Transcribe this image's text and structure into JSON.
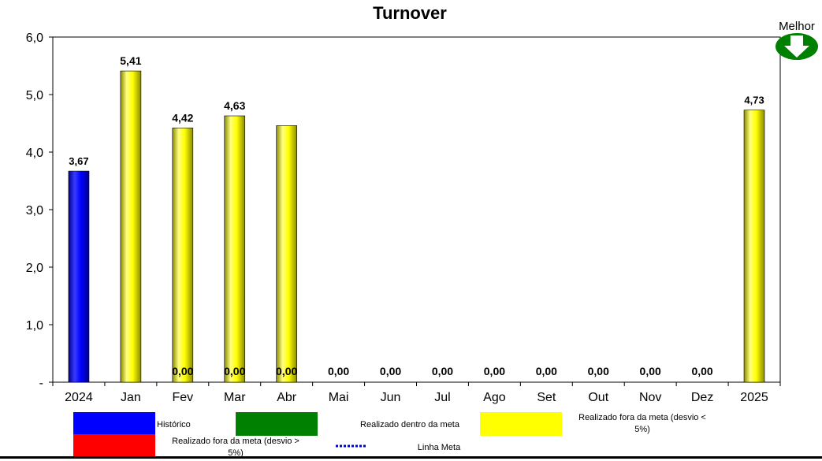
{
  "chart_data": {
    "type": "bar",
    "title": "Turnover",
    "categories": [
      "2024",
      "Jan",
      "Fev",
      "Mar",
      "Abr",
      "Mai",
      "Jun",
      "Jul",
      "Ago",
      "Set",
      "Out",
      "Nov",
      "Dez",
      "2025"
    ],
    "values": [
      3.67,
      5.41,
      4.42,
      4.63,
      4.46,
      null,
      null,
      null,
      null,
      null,
      null,
      null,
      null,
      4.73
    ],
    "bar_colors": [
      "#0000ff",
      "#ffff00",
      "#ffff00",
      "#ffff00",
      "#ffff00",
      null,
      null,
      null,
      null,
      null,
      null,
      null,
      null,
      "#ffff00"
    ],
    "top_labels": [
      "3,67",
      "5,41",
      "4,42",
      "4,63",
      "",
      "",
      "",
      "",
      "",
      "",
      "",
      "",
      "",
      "4,73"
    ],
    "bottom_labels": [
      "",
      "",
      "0,00",
      "0,00",
      "0,00",
      "0,00",
      "0,00",
      "0,00",
      "0,00",
      "0,00",
      "0,00",
      "0,00",
      "0,00",
      ""
    ],
    "ylim": [
      0,
      6
    ],
    "y_ticks": [
      "-",
      "1,0",
      "2,0",
      "3,0",
      "4,0",
      "5,0",
      "6,0"
    ],
    "grid": false,
    "better_direction": "down",
    "better_label": "Melhor"
  },
  "legend": [
    {
      "label_lines": [
        "Histórico"
      ],
      "color": "#0000ff",
      "type": "box"
    },
    {
      "label_lines": [
        "Realizado dentro da meta"
      ],
      "color": "#008000",
      "type": "box"
    },
    {
      "label_lines": [
        "Realizado fora da meta (desvio <",
        "5%)"
      ],
      "color": "#ffff00",
      "type": "box"
    },
    {
      "label_lines": [
        "Realizado fora da meta (desvio >",
        "5%)"
      ],
      "color": "#ff0000",
      "type": "box"
    },
    {
      "label_lines": [
        "Linha Meta"
      ],
      "color": "#0000cc",
      "type": "dotted-line"
    }
  ]
}
